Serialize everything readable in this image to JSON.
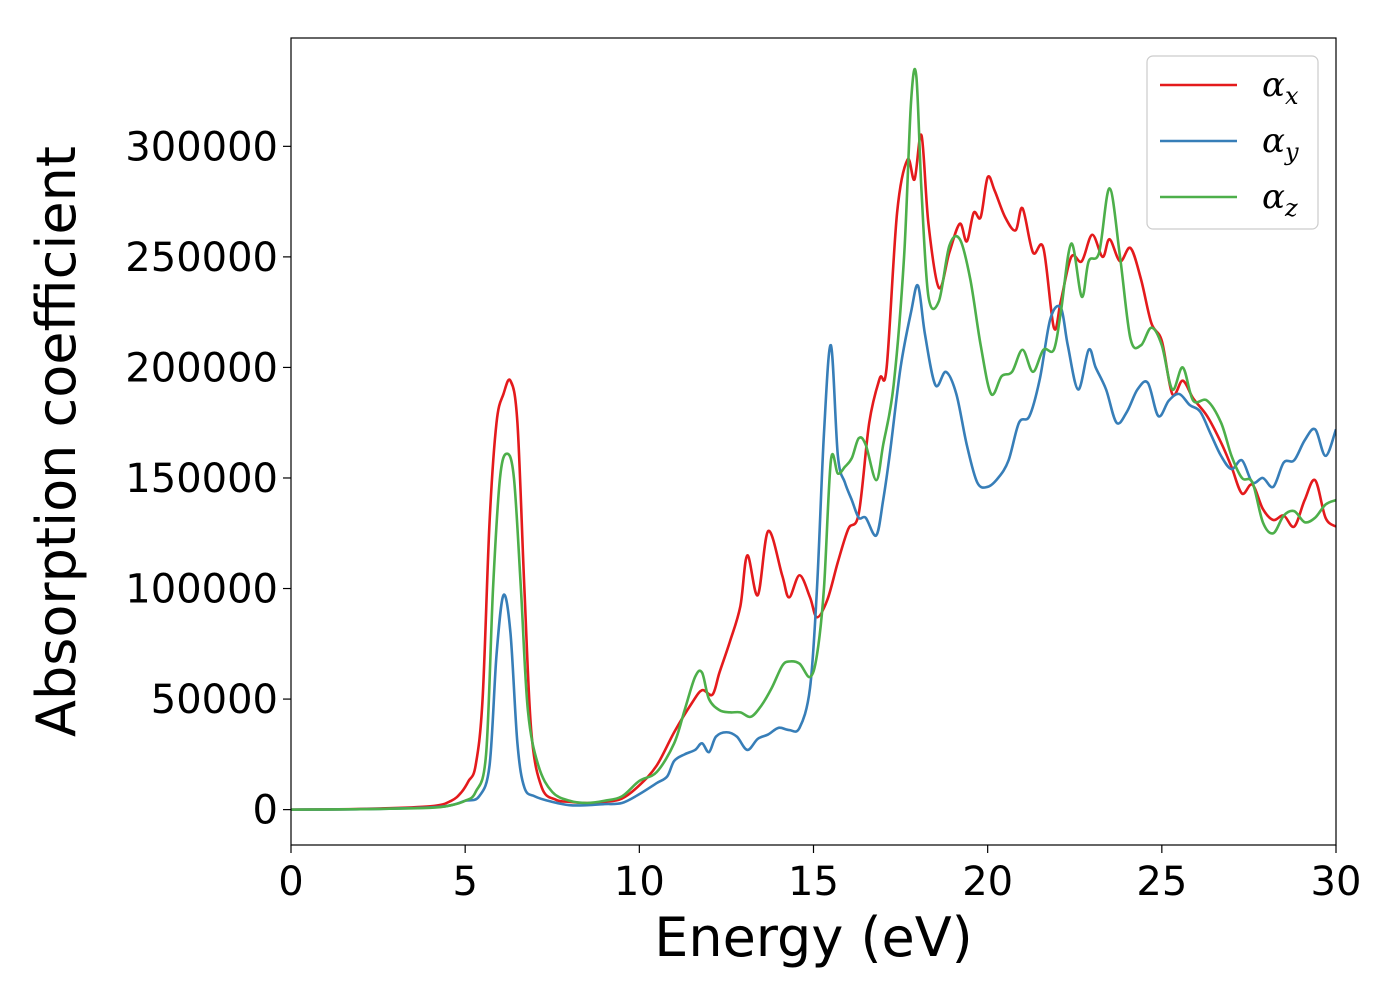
{
  "chart_data": {
    "type": "line",
    "title": "",
    "xlabel": "Energy (eV)",
    "ylabel": "Absorption coefficient",
    "xlim": [
      0,
      30
    ],
    "ylim": [
      -16000,
      349000
    ],
    "xticks": [
      0,
      5,
      10,
      15,
      20,
      25,
      30
    ],
    "yticks": [
      0,
      50000,
      100000,
      150000,
      200000,
      250000,
      300000
    ],
    "grid": false,
    "legend_position": "top-right",
    "series": [
      {
        "name": "α_x",
        "legend_base": "α",
        "legend_sub": "x",
        "color": "#e41a1c",
        "x": [
          0,
          2,
          4,
          4.6,
          4.9,
          5.1,
          5.3,
          5.5,
          5.7,
          5.9,
          6.1,
          6.3,
          6.5,
          6.7,
          6.9,
          7.2,
          7.6,
          8,
          8.5,
          9,
          9.5,
          10,
          10.5,
          11,
          11.5,
          11.8,
          12.1,
          12.3,
          12.6,
          12.9,
          13.1,
          13.4,
          13.7,
          14.1,
          14.3,
          14.6,
          14.9,
          15.1,
          15.4,
          15.7,
          16,
          16.3,
          16.6,
          16.9,
          17.1,
          17.4,
          17.7,
          17.9,
          18.1,
          18.3,
          18.6,
          18.9,
          19.2,
          19.4,
          19.6,
          19.8,
          20,
          20.2,
          20.5,
          20.8,
          21,
          21.3,
          21.6,
          21.9,
          22.1,
          22.4,
          22.7,
          23,
          23.3,
          23.5,
          23.8,
          24.1,
          24.4,
          24.7,
          25,
          25.3,
          25.6,
          25.9,
          26.3,
          26.7,
          27,
          27.3,
          27.6,
          27.9,
          28.2,
          28.5,
          28.8,
          29.1,
          29.4,
          29.7,
          30
        ],
        "y": [
          0,
          300,
          1500,
          4000,
          8000,
          13000,
          20000,
          50000,
          130000,
          175000,
          188000,
          194000,
          175000,
          100000,
          35000,
          10000,
          4500,
          3500,
          3000,
          3500,
          5000,
          11000,
          20000,
          35000,
          48000,
          54000,
          52000,
          62000,
          76000,
          92000,
          115000,
          97000,
          126000,
          106000,
          96000,
          106000,
          96000,
          87000,
          95000,
          112000,
          127000,
          134000,
          175000,
          195000,
          200000,
          270000,
          294000,
          285000,
          305000,
          265000,
          236000,
          252000,
          265000,
          257000,
          270000,
          268000,
          286000,
          280000,
          268000,
          262000,
          272000,
          252000,
          254000,
          218000,
          230000,
          250000,
          248000,
          260000,
          250000,
          258000,
          248000,
          254000,
          240000,
          220000,
          212000,
          188000,
          194000,
          186000,
          178000,
          166000,
          155000,
          143000,
          147000,
          136000,
          131000,
          133000,
          128000,
          140000,
          149000,
          132000,
          128000
        ]
      },
      {
        "name": "α_y",
        "legend_base": "α",
        "legend_sub": "y",
        "color": "#377eb8",
        "x": [
          0,
          2,
          4,
          4.6,
          5,
          5.4,
          5.7,
          5.9,
          6.1,
          6.3,
          6.5,
          6.7,
          7,
          7.5,
          8,
          8.5,
          9,
          9.5,
          10,
          10.5,
          10.8,
          11,
          11.3,
          11.6,
          11.8,
          12,
          12.2,
          12.5,
          12.8,
          13.1,
          13.4,
          13.7,
          14,
          14.3,
          14.6,
          14.9,
          15.1,
          15.3,
          15.5,
          15.7,
          15.9,
          16.1,
          16.3,
          16.5,
          16.8,
          17,
          17.2,
          17.5,
          17.8,
          18,
          18.2,
          18.5,
          18.8,
          19.1,
          19.4,
          19.7,
          20,
          20.3,
          20.6,
          20.9,
          21.2,
          21.5,
          21.8,
          22.1,
          22.3,
          22.6,
          22.9,
          23.1,
          23.4,
          23.7,
          24,
          24.3,
          24.6,
          24.9,
          25.2,
          25.5,
          25.8,
          26.1,
          26.4,
          26.7,
          27,
          27.3,
          27.6,
          27.9,
          28.2,
          28.5,
          28.8,
          29.1,
          29.4,
          29.7,
          30
        ],
        "y": [
          0,
          200,
          1000,
          2000,
          4000,
          6000,
          20000,
          70000,
          97000,
          80000,
          30000,
          10000,
          6000,
          3500,
          2000,
          2000,
          2500,
          3000,
          7000,
          12000,
          15000,
          22000,
          25000,
          27000,
          30000,
          26000,
          33000,
          35000,
          33000,
          27000,
          32000,
          34000,
          37000,
          36000,
          37000,
          55000,
          100000,
          170000,
          210000,
          160000,
          148000,
          140000,
          132000,
          132000,
          124000,
          140000,
          162000,
          200000,
          225000,
          237000,
          215000,
          192000,
          198000,
          188000,
          165000,
          148000,
          146000,
          150000,
          158000,
          175000,
          178000,
          195000,
          222000,
          227000,
          210000,
          190000,
          208000,
          200000,
          190000,
          175000,
          180000,
          190000,
          193000,
          178000,
          185000,
          188000,
          183000,
          180000,
          170000,
          160000,
          154000,
          158000,
          148000,
          150000,
          146000,
          157000,
          158000,
          167000,
          172000,
          160000,
          172000
        ]
      },
      {
        "name": "α_z",
        "legend_base": "α",
        "legend_sub": "z",
        "color": "#4daf4a",
        "x": [
          0,
          2,
          4,
          4.6,
          5,
          5.3,
          5.6,
          5.8,
          6,
          6.2,
          6.4,
          6.6,
          6.8,
          7.1,
          7.5,
          8,
          8.5,
          9,
          9.5,
          10,
          10.5,
          11,
          11.3,
          11.6,
          11.8,
          12,
          12.3,
          12.6,
          12.9,
          13.2,
          13.5,
          13.8,
          14.1,
          14.3,
          14.6,
          14.9,
          15.1,
          15.3,
          15.5,
          15.7,
          15.9,
          16.1,
          16.3,
          16.5,
          16.8,
          17,
          17.3,
          17.6,
          17.8,
          17.95,
          18.1,
          18.3,
          18.6,
          18.9,
          19.2,
          19.5,
          19.8,
          20.1,
          20.4,
          20.7,
          21,
          21.3,
          21.6,
          21.9,
          22.1,
          22.4,
          22.7,
          22.9,
          23.2,
          23.5,
          23.8,
          24.1,
          24.4,
          24.7,
          25,
          25.3,
          25.6,
          25.9,
          26.3,
          26.7,
          27,
          27.3,
          27.6,
          27.9,
          28.2,
          28.5,
          28.8,
          29.1,
          29.4,
          29.7,
          30
        ],
        "y": [
          0,
          200,
          800,
          2000,
          4000,
          8000,
          25000,
          100000,
          150000,
          161000,
          150000,
          100000,
          45000,
          20000,
          8000,
          4000,
          3000,
          4000,
          6000,
          13000,
          17000,
          30000,
          45000,
          60000,
          62000,
          50000,
          45000,
          44000,
          44000,
          42000,
          47000,
          55000,
          65000,
          67000,
          66000,
          60000,
          70000,
          100000,
          158000,
          152000,
          155000,
          159000,
          168000,
          165000,
          149000,
          165000,
          192000,
          250000,
          320000,
          332000,
          280000,
          232000,
          230000,
          255000,
          258000,
          240000,
          210000,
          188000,
          196000,
          198000,
          208000,
          198000,
          208000,
          208000,
          225000,
          256000,
          232000,
          248000,
          252000,
          281000,
          250000,
          213000,
          210000,
          218000,
          210000,
          190000,
          200000,
          185000,
          185000,
          175000,
          160000,
          150000,
          148000,
          130000,
          125000,
          133000,
          135000,
          130000,
          132000,
          138000,
          140000
        ]
      }
    ]
  }
}
